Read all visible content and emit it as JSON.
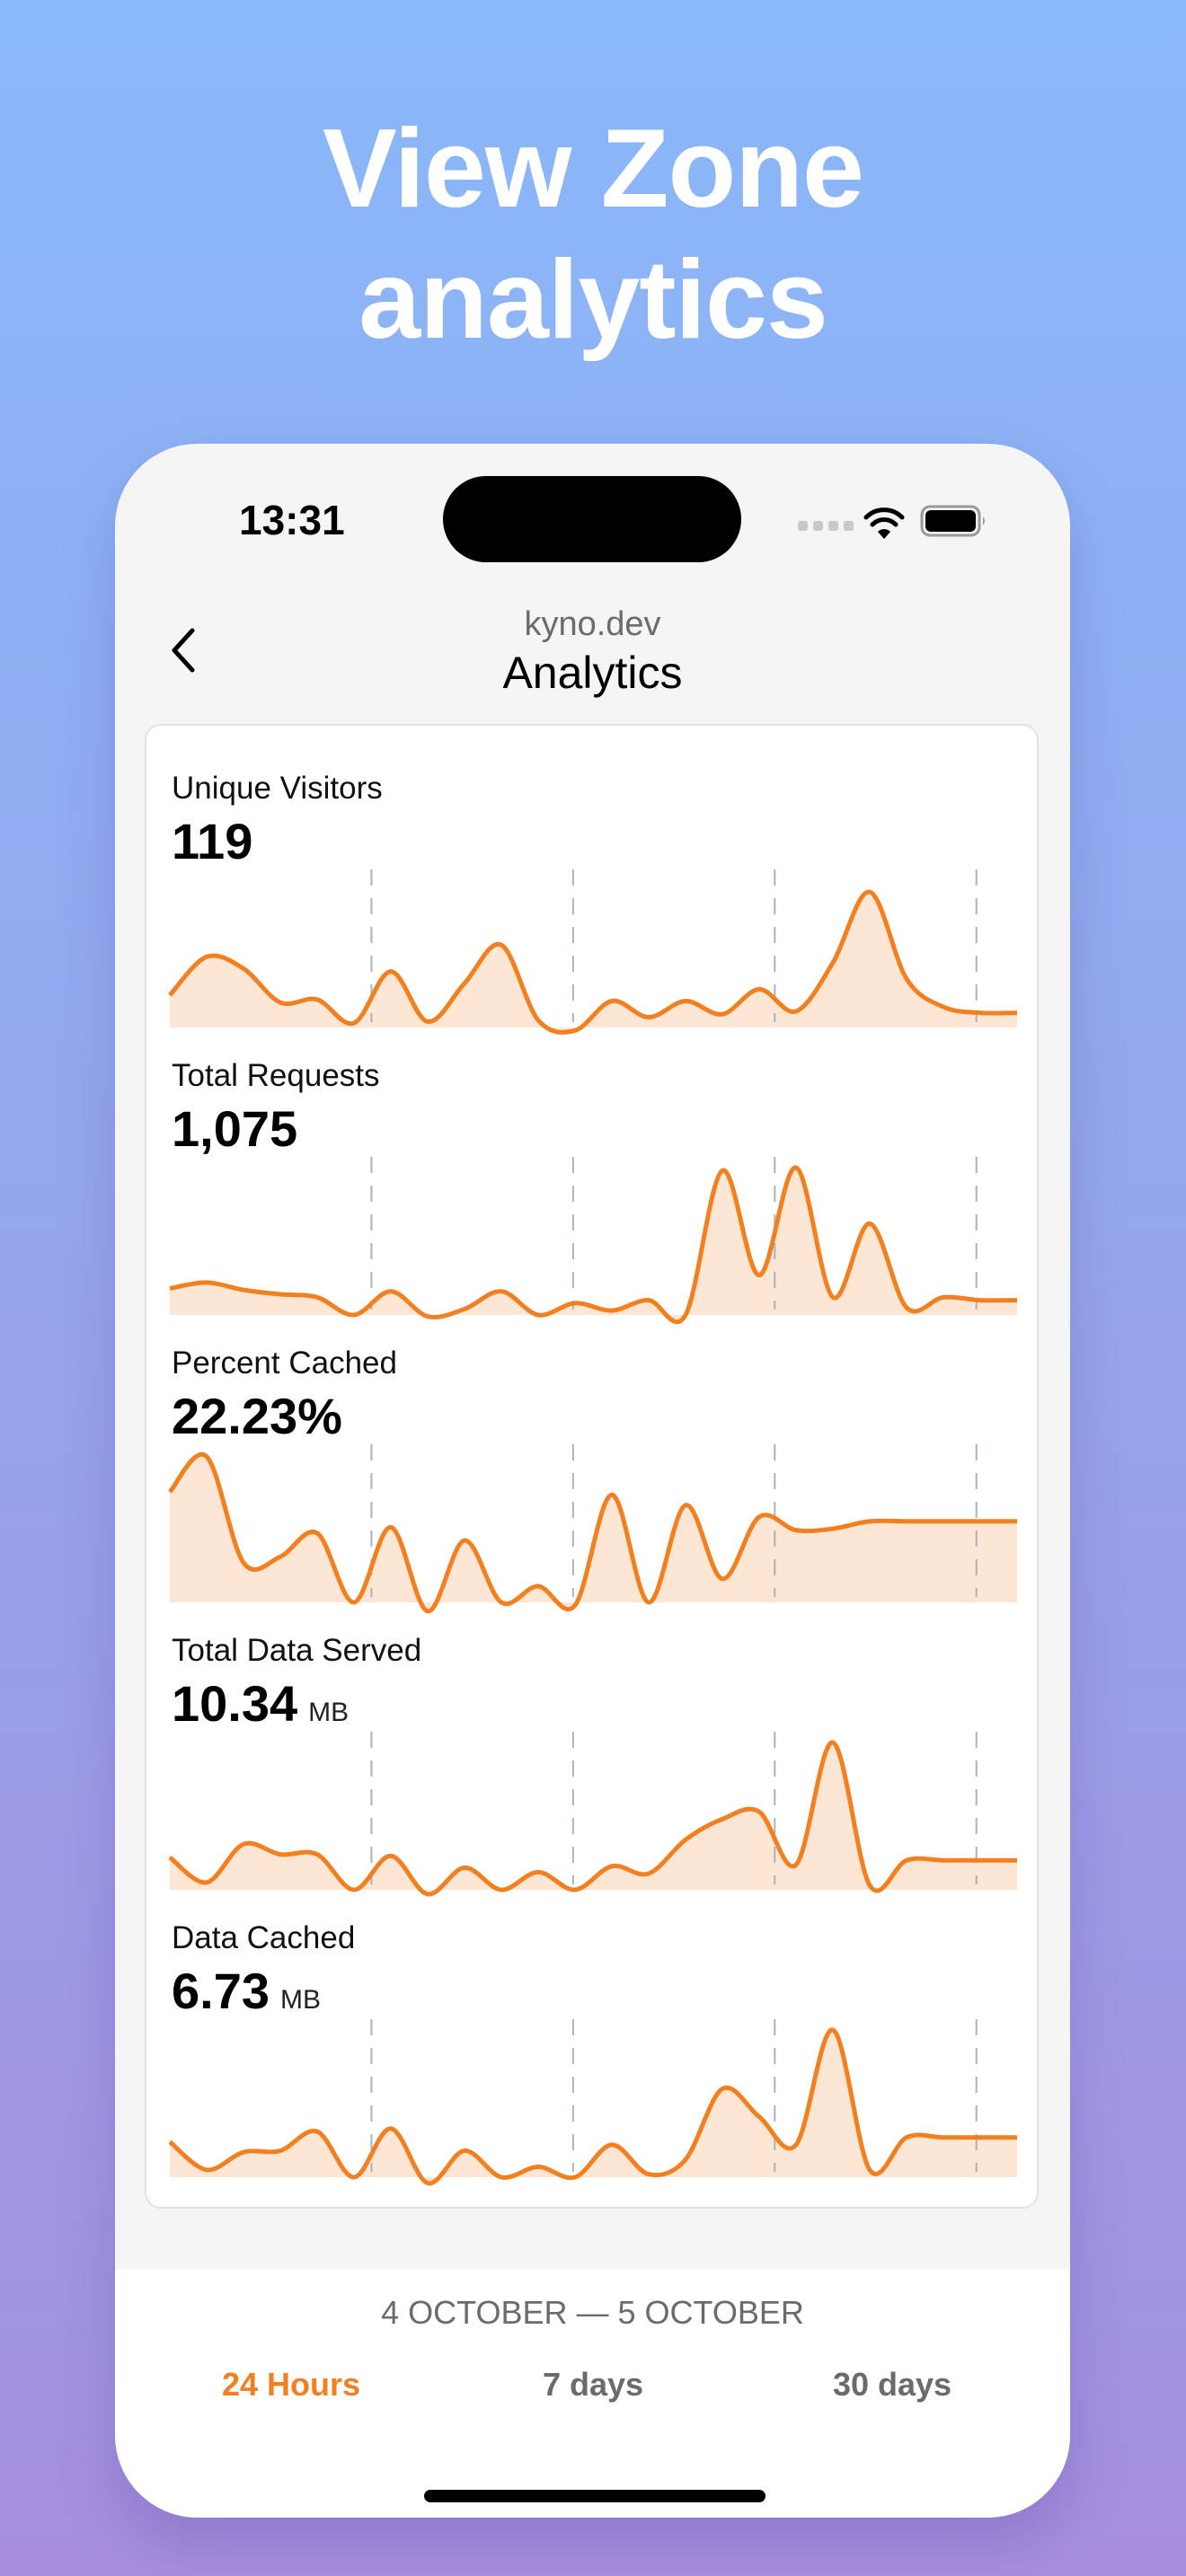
{
  "hero": {
    "line1": "View Zone",
    "line2": "analytics"
  },
  "status_bar": {
    "time": "13:31",
    "icons": [
      "cellular-signal-icon",
      "wifi-icon",
      "battery-icon"
    ]
  },
  "nav": {
    "back_icon": "chevron-left-icon",
    "subtitle": "kyno.dev",
    "title": "Analytics"
  },
  "colors": {
    "accent": "#F38020",
    "fill": "#FDE6D4",
    "gridline": "#A8B4C0",
    "bg_top": "#89B8FA",
    "bg_bottom": "#A68EDF"
  },
  "metrics": [
    {
      "label": "Unique Visitors",
      "value": "119",
      "unit": ""
    },
    {
      "label": "Total Requests",
      "value": "1,075",
      "unit": ""
    },
    {
      "label": "Percent Cached",
      "value": "22.23%",
      "unit": ""
    },
    {
      "label": "Total Data Served",
      "value": "10.34",
      "unit": "MB"
    },
    {
      "label": "Data Cached",
      "value": "6.73",
      "unit": "MB"
    }
  ],
  "footer": {
    "date_range": "4 OCTOBER — 5 OCTOBER",
    "tabs": [
      {
        "label": "24 Hours",
        "active": true
      },
      {
        "label": "7 days",
        "active": false
      },
      {
        "label": "30 days",
        "active": false
      }
    ]
  },
  "chart_data": [
    {
      "type": "area",
      "title": "Unique Visitors",
      "xlabel": "",
      "ylabel": "",
      "grid": {
        "vertical_dashed_at_fraction": [
          0.238,
          0.476,
          0.714,
          0.952
        ]
      },
      "x": [
        0,
        1,
        2,
        3,
        4,
        5,
        6,
        7,
        8,
        9,
        10,
        11,
        12,
        13,
        14,
        15,
        16,
        17,
        18,
        19,
        20,
        21,
        22,
        23
      ],
      "values": [
        0.22,
        0.48,
        0.4,
        0.17,
        0.19,
        0.03,
        0.38,
        0.04,
        0.3,
        0.56,
        0.05,
        -0.02,
        0.18,
        0.07,
        0.18,
        0.09,
        0.26,
        0.11,
        0.44,
        0.92,
        0.33,
        0.14,
        0.1,
        0.1
      ],
      "ylim": [
        0,
        1
      ]
    },
    {
      "type": "area",
      "title": "Total Requests",
      "xlabel": "",
      "ylabel": "",
      "grid": {
        "vertical_dashed_at_fraction": [
          0.238,
          0.476,
          0.714,
          0.952
        ]
      },
      "x": [
        0,
        1,
        2,
        3,
        4,
        5,
        6,
        7,
        8,
        9,
        10,
        11,
        12,
        13,
        14,
        15,
        16,
        17,
        18,
        19,
        20,
        21,
        22,
        23
      ],
      "values": [
        0.18,
        0.22,
        0.17,
        0.14,
        0.12,
        0.0,
        0.16,
        -0.01,
        0.04,
        0.16,
        0.0,
        0.08,
        0.03,
        0.1,
        0.0,
        0.98,
        0.27,
        1.0,
        0.12,
        0.62,
        0.05,
        0.12,
        0.1,
        0.1
      ],
      "ylim": [
        0,
        1
      ]
    },
    {
      "type": "area",
      "title": "Percent Cached",
      "xlabel": "",
      "ylabel": "",
      "grid": {
        "vertical_dashed_at_fraction": [
          0.238,
          0.476,
          0.714,
          0.952
        ]
      },
      "x": [
        0,
        1,
        2,
        3,
        4,
        5,
        6,
        7,
        8,
        9,
        10,
        11,
        12,
        13,
        14,
        15,
        16,
        17,
        18,
        19,
        20,
        21,
        22,
        23
      ],
      "values": [
        0.75,
        0.99,
        0.27,
        0.31,
        0.47,
        0.0,
        0.51,
        -0.06,
        0.42,
        0.0,
        0.11,
        -0.02,
        0.73,
        0.0,
        0.66,
        0.16,
        0.58,
        0.49,
        0.5,
        0.55,
        0.55,
        0.55,
        0.55,
        0.55
      ],
      "ylim": [
        0,
        1
      ]
    },
    {
      "type": "area",
      "title": "Total Data Served (MB)",
      "xlabel": "",
      "ylabel": "",
      "grid": {
        "vertical_dashed_at_fraction": [
          0.238,
          0.476,
          0.714,
          0.952
        ]
      },
      "x": [
        0,
        1,
        2,
        3,
        4,
        5,
        6,
        7,
        8,
        9,
        10,
        11,
        12,
        13,
        14,
        15,
        16,
        17,
        18,
        19,
        20,
        21,
        22,
        23
      ],
      "values": [
        0.22,
        0.05,
        0.31,
        0.24,
        0.24,
        0.0,
        0.23,
        -0.03,
        0.15,
        0.0,
        0.12,
        0.0,
        0.16,
        0.11,
        0.34,
        0.48,
        0.53,
        0.17,
        1.0,
        0.03,
        0.2,
        0.2,
        0.2,
        0.2
      ],
      "ylim": [
        0,
        1
      ]
    },
    {
      "type": "area",
      "title": "Data Cached (MB)",
      "xlabel": "",
      "ylabel": "",
      "grid": {
        "vertical_dashed_at_fraction": [
          0.238,
          0.476,
          0.714,
          0.952
        ]
      },
      "x": [
        0,
        1,
        2,
        3,
        4,
        5,
        6,
        7,
        8,
        9,
        10,
        11,
        12,
        13,
        14,
        15,
        16,
        17,
        18,
        19,
        20,
        21,
        22,
        23
      ],
      "values": [
        0.24,
        0.05,
        0.17,
        0.18,
        0.31,
        0.0,
        0.33,
        -0.04,
        0.18,
        0.0,
        0.07,
        0.0,
        0.22,
        0.02,
        0.12,
        0.6,
        0.41,
        0.22,
        1.0,
        0.05,
        0.27,
        0.27,
        0.27,
        0.27
      ],
      "ylim": [
        0,
        1
      ]
    }
  ]
}
